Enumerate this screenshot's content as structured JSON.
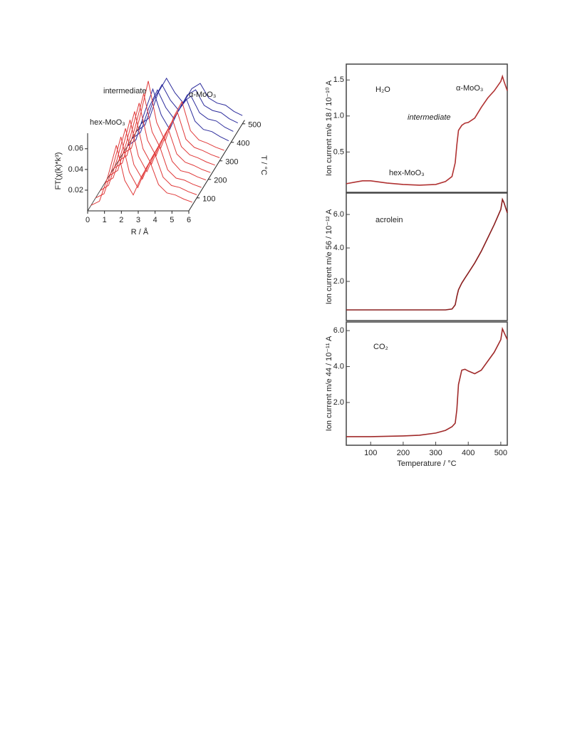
{
  "chart_data": [
    {
      "type": "waterfall",
      "ylabel": "FT(χ(k)*k³)",
      "xlabel": "R / Å",
      "zlabel": "T / °C",
      "annotations": [
        "intermediate",
        "α-MoO₃",
        "hex-MoO₃"
      ],
      "x": [
        0,
        0.5,
        1,
        1.5,
        2,
        2.5,
        3,
        3.5,
        4,
        4.5,
        5,
        5.5,
        6
      ],
      "xlim": [
        0,
        6
      ],
      "xticks": [
        0,
        1,
        2,
        3,
        4,
        5,
        6
      ],
      "ylim": [
        0,
        0.075
      ],
      "yticks": [
        0.02,
        0.04,
        0.06
      ],
      "zlim": [
        30,
        520
      ],
      "zticks": [
        100,
        200,
        300,
        400,
        500
      ],
      "series": [
        {
          "z": 60,
          "color": "#e03a3a",
          "values": [
            0,
            0.004,
            0.028,
            0.058,
            0.024,
            0.01,
            0.028,
            0.042,
            0.02,
            0.012,
            0.01,
            0.006,
            0.003
          ]
        },
        {
          "z": 100,
          "color": "#e03a3a",
          "values": [
            0,
            0.004,
            0.029,
            0.059,
            0.025,
            0.01,
            0.029,
            0.043,
            0.02,
            0.012,
            0.01,
            0.006,
            0.003
          ]
        },
        {
          "z": 140,
          "color": "#e03a3a",
          "values": [
            0,
            0.005,
            0.03,
            0.06,
            0.025,
            0.011,
            0.03,
            0.044,
            0.02,
            0.012,
            0.01,
            0.006,
            0.003
          ]
        },
        {
          "z": 180,
          "color": "#e03a3a",
          "values": [
            0,
            0.005,
            0.03,
            0.061,
            0.026,
            0.011,
            0.03,
            0.045,
            0.021,
            0.012,
            0.01,
            0.006,
            0.003
          ]
        },
        {
          "z": 220,
          "color": "#e03a3a",
          "values": [
            0,
            0.005,
            0.031,
            0.062,
            0.026,
            0.011,
            0.031,
            0.045,
            0.021,
            0.013,
            0.01,
            0.006,
            0.003
          ]
        },
        {
          "z": 260,
          "color": "#e03a3a",
          "values": [
            0,
            0.005,
            0.032,
            0.063,
            0.027,
            0.012,
            0.032,
            0.046,
            0.021,
            0.013,
            0.01,
            0.006,
            0.003
          ]
        },
        {
          "z": 300,
          "color": "#e03a3a",
          "values": [
            0,
            0.005,
            0.033,
            0.065,
            0.028,
            0.012,
            0.033,
            0.047,
            0.021,
            0.013,
            0.01,
            0.006,
            0.003
          ]
        },
        {
          "z": 340,
          "color": "#e03a3a",
          "values": [
            0,
            0.005,
            0.035,
            0.07,
            0.03,
            0.012,
            0.035,
            0.05,
            0.022,
            0.013,
            0.01,
            0.006,
            0.003
          ]
        },
        {
          "z": 380,
          "color": "#2c2c9c",
          "values": [
            0,
            0.006,
            0.032,
            0.055,
            0.03,
            0.016,
            0.034,
            0.045,
            0.024,
            0.016,
            0.014,
            0.009,
            0.005
          ]
        },
        {
          "z": 420,
          "color": "#2c2c9c",
          "values": [
            0,
            0.006,
            0.03,
            0.047,
            0.03,
            0.019,
            0.035,
            0.041,
            0.025,
            0.019,
            0.017,
            0.011,
            0.007
          ]
        },
        {
          "z": 460,
          "color": "#2c2c9c",
          "values": [
            0,
            0.006,
            0.03,
            0.045,
            0.03,
            0.02,
            0.035,
            0.04,
            0.025,
            0.02,
            0.018,
            0.012,
            0.008
          ]
        },
        {
          "z": 500,
          "color": "#2c2c9c",
          "values": [
            0,
            0.006,
            0.03,
            0.044,
            0.03,
            0.02,
            0.034,
            0.039,
            0.025,
            0.02,
            0.018,
            0.012,
            0.008
          ]
        }
      ]
    },
    {
      "type": "line",
      "ylabel": "Ion current m/e 18 / 10⁻¹⁰ A",
      "annotations": [
        "H₂O",
        "α-MoO₃",
        "intermediate",
        "hex-MoO₃"
      ],
      "x": [
        25,
        50,
        75,
        100,
        150,
        200,
        250,
        300,
        330,
        350,
        360,
        365,
        370,
        380,
        390,
        400,
        420,
        440,
        460,
        480,
        500,
        505,
        510,
        520
      ],
      "values": [
        0.06,
        0.08,
        0.1,
        0.1,
        0.07,
        0.05,
        0.04,
        0.05,
        0.09,
        0.16,
        0.35,
        0.6,
        0.8,
        0.87,
        0.9,
        0.91,
        0.97,
        1.12,
        1.25,
        1.35,
        1.48,
        1.55,
        1.48,
        1.35
      ],
      "color": "#b03232",
      "xlim": [
        25,
        520
      ],
      "ylim": [
        -0.06,
        1.72
      ],
      "yticks": [
        0.5,
        {
          "value": 1,
          "label": "1.0"
        },
        1.5
      ]
    },
    {
      "type": "line",
      "ylabel": "Ion current m/e 56 / 10⁻¹² A",
      "annotations": [
        "acrolein"
      ],
      "x": [
        25,
        50,
        75,
        100,
        150,
        200,
        250,
        300,
        330,
        350,
        360,
        365,
        370,
        380,
        390,
        400,
        420,
        440,
        460,
        480,
        500,
        505,
        510,
        520
      ],
      "values": [
        0.3,
        0.3,
        0.3,
        0.3,
        0.3,
        0.3,
        0.3,
        0.3,
        0.3,
        0.35,
        0.6,
        1.1,
        1.5,
        1.9,
        2.2,
        2.5,
        3.1,
        3.8,
        4.6,
        5.4,
        6.3,
        6.9,
        6.7,
        6.1
      ],
      "color": "#8a1e1e",
      "xlim": [
        25,
        520
      ],
      "ylim": [
        -0.34,
        7.28
      ],
      "yticks": [
        {
          "value": 2,
          "label": "2.0"
        },
        {
          "value": 4,
          "label": "4.0"
        },
        {
          "value": 6,
          "label": "6.0"
        }
      ]
    },
    {
      "type": "line",
      "ylabel": "Ion current m/e 44 / 10⁻¹¹ A",
      "xlabel": "Temperature / °C",
      "annotations": [
        "CO₂"
      ],
      "x": [
        25,
        50,
        75,
        100,
        150,
        200,
        250,
        300,
        330,
        350,
        360,
        365,
        370,
        380,
        390,
        400,
        420,
        440,
        460,
        480,
        500,
        505,
        510,
        520
      ],
      "values": [
        0.1,
        0.1,
        0.1,
        0.1,
        0.12,
        0.14,
        0.18,
        0.3,
        0.45,
        0.65,
        0.85,
        1.6,
        3.0,
        3.8,
        3.85,
        3.75,
        3.6,
        3.8,
        4.3,
        4.8,
        5.5,
        6.1,
        5.9,
        5.5
      ],
      "color": "#a02a2a",
      "xlim": [
        25,
        520
      ],
      "ylim": [
        -0.38,
        6.48
      ],
      "xticks": [
        100,
        200,
        300,
        400,
        500
      ],
      "yticks": [
        {
          "value": 2,
          "label": "2.0"
        },
        {
          "value": 4,
          "label": "4.0"
        },
        {
          "value": 6,
          "label": "6.0"
        }
      ]
    }
  ]
}
